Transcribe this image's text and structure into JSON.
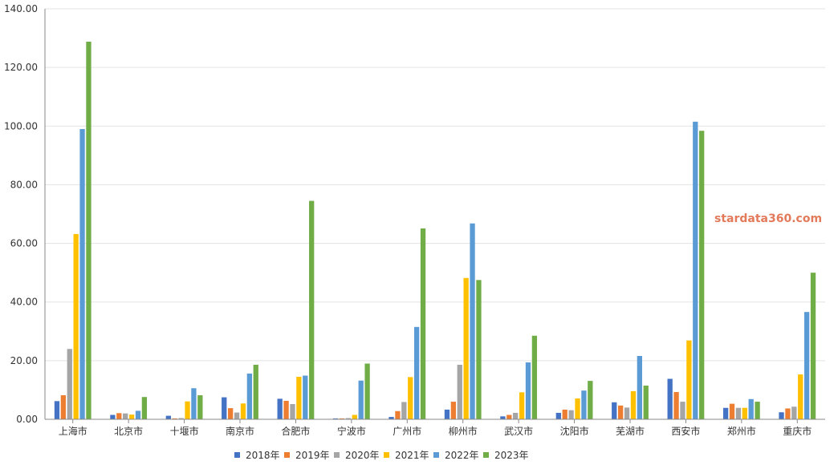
{
  "watermark": "stardata360.com",
  "chart_data": {
    "type": "bar",
    "title": "",
    "xlabel": "",
    "ylabel": "",
    "ylim": [
      0,
      140
    ],
    "yticks": [
      "0.00",
      "20.00",
      "40.00",
      "60.00",
      "80.00",
      "100.00",
      "120.00",
      "140.00"
    ],
    "grid": true,
    "legend_position": "bottom",
    "categories": [
      "上海市",
      "北京市",
      "十堰市",
      "南京市",
      "合肥市",
      "宁波市",
      "广州市",
      "柳州市",
      "武汉市",
      "沈阳市",
      "芜湖市",
      "西安市",
      "郑州市",
      "重庆市"
    ],
    "series": [
      {
        "name": "2018年",
        "color": "#4472c4",
        "values": [
          6.2,
          1.5,
          1.2,
          7.5,
          7.0,
          0.3,
          0.8,
          3.3,
          1.0,
          2.2,
          5.8,
          13.8,
          3.9,
          2.4
        ]
      },
      {
        "name": "2019年",
        "color": "#ed7d31",
        "values": [
          8.2,
          2.1,
          0.3,
          3.8,
          6.3,
          0.3,
          2.8,
          6.0,
          1.5,
          3.3,
          4.7,
          9.3,
          5.3,
          3.7
        ]
      },
      {
        "name": "2020年",
        "color": "#a5a5a5",
        "values": [
          24.0,
          2.0,
          0.4,
          2.3,
          5.2,
          0.4,
          5.9,
          18.6,
          2.2,
          3.1,
          4.0,
          6.0,
          3.9,
          4.3
        ]
      },
      {
        "name": "2021年",
        "color": "#ffc000",
        "values": [
          63.2,
          1.6,
          6.1,
          5.4,
          14.5,
          1.5,
          14.4,
          48.2,
          9.2,
          7.1,
          9.6,
          26.9,
          3.9,
          15.3
        ]
      },
      {
        "name": "2022年",
        "color": "#5b9bd5",
        "values": [
          99.0,
          2.9,
          10.6,
          15.6,
          14.9,
          13.2,
          31.5,
          66.8,
          19.4,
          9.8,
          21.6,
          101.5,
          6.9,
          36.6
        ]
      },
      {
        "name": "2023年",
        "color": "#70ad47",
        "values": [
          128.8,
          7.6,
          8.2,
          18.6,
          74.5,
          19.0,
          65.1,
          47.5,
          28.5,
          13.1,
          11.5,
          98.4,
          6.0,
          50.0
        ]
      }
    ]
  }
}
